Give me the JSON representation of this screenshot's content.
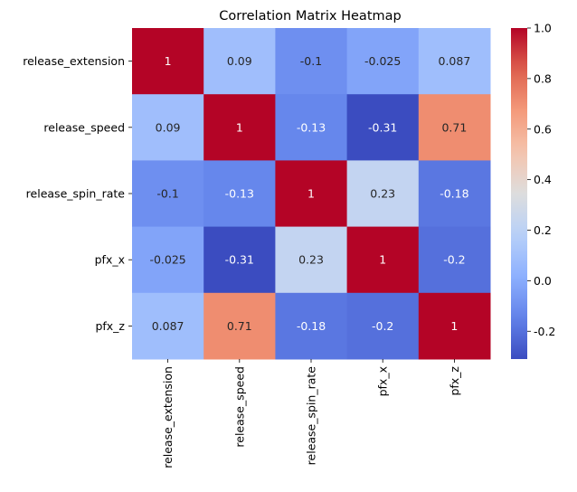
{
  "chart_data": {
    "type": "heatmap",
    "title": "Correlation Matrix Heatmap",
    "rows": [
      "release_extension",
      "release_speed",
      "release_spin_rate",
      "pfx_x",
      "pfx_z"
    ],
    "columns": [
      "release_extension",
      "release_speed",
      "release_spin_rate",
      "pfx_x",
      "pfx_z"
    ],
    "values": [
      [
        1,
        0.09,
        -0.1,
        -0.025,
        0.087
      ],
      [
        0.09,
        1,
        -0.13,
        -0.31,
        0.71
      ],
      [
        -0.1,
        -0.13,
        1,
        0.23,
        -0.18
      ],
      [
        -0.025,
        -0.31,
        0.23,
        1,
        -0.2
      ],
      [
        0.087,
        0.71,
        -0.18,
        -0.2,
        1
      ]
    ],
    "cell_labels": [
      [
        "1",
        "0.09",
        "-0.1",
        "-0.025",
        "0.087"
      ],
      [
        "0.09",
        "1",
        "-0.13",
        "-0.31",
        "0.71"
      ],
      [
        "-0.1",
        "-0.13",
        "1",
        "0.23",
        "-0.18"
      ],
      [
        "-0.025",
        "-0.31",
        "0.23",
        "1",
        "-0.2"
      ],
      [
        "0.087",
        "0.71",
        "-0.18",
        "-0.2",
        "1"
      ]
    ],
    "colormap": "coolwarm",
    "colorbar": {
      "range": [
        -0.31,
        1.0
      ],
      "ticks": [
        "1.0",
        "0.8",
        "0.6",
        "0.4",
        "0.2",
        "0.0",
        "-0.2"
      ],
      "tick_values": [
        1.0,
        0.8,
        0.6,
        0.4,
        0.2,
        0.0,
        -0.2
      ],
      "placement": "right"
    }
  }
}
